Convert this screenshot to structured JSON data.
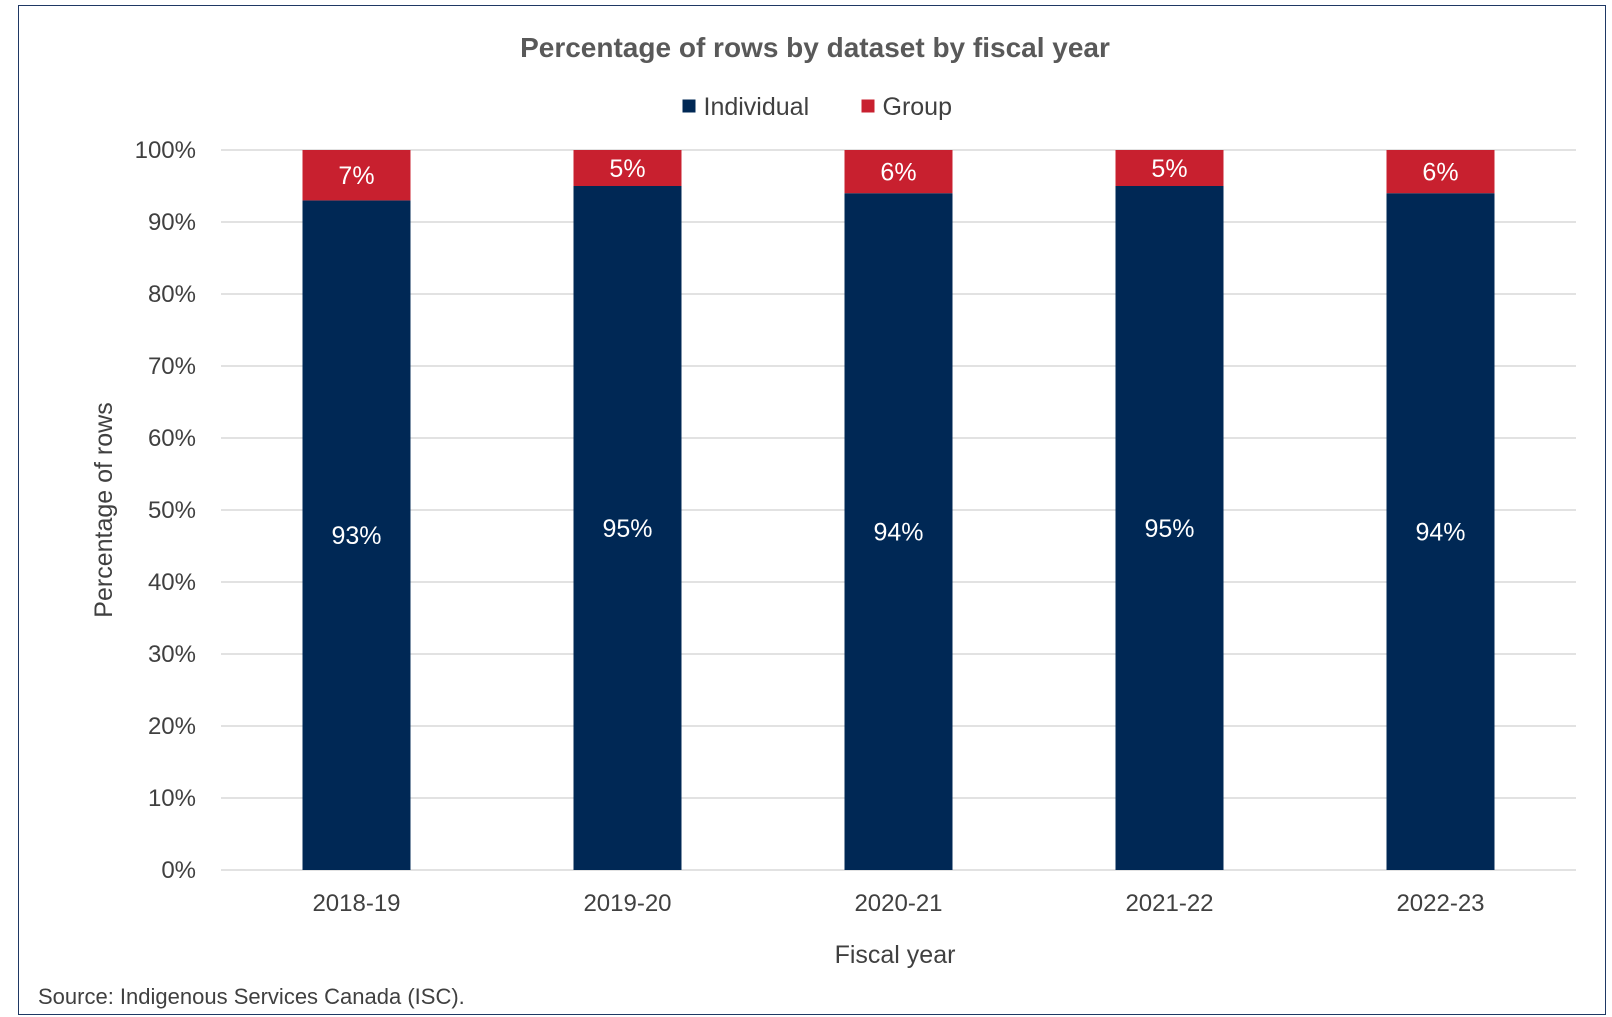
{
  "chart_data": {
    "type": "bar",
    "stacked": true,
    "title": "Percentage of rows by dataset by fiscal year",
    "xlabel": "Fiscal year",
    "ylabel": "Percentage of rows",
    "ylim": [
      0,
      100
    ],
    "yticks": [
      "0%",
      "10%",
      "20%",
      "30%",
      "40%",
      "50%",
      "60%",
      "70%",
      "80%",
      "90%",
      "100%"
    ],
    "categories": [
      "2018-19",
      "2019-20",
      "2020-21",
      "2021-22",
      "2022-23"
    ],
    "series": [
      {
        "name": "Individual",
        "color": "#002855",
        "values": [
          93,
          95,
          94,
          95,
          94
        ],
        "labels": [
          "93%",
          "95%",
          "94%",
          "95%",
          "94%"
        ]
      },
      {
        "name": "Group",
        "color": "#c8202f",
        "values": [
          7,
          5,
          6,
          5,
          6
        ],
        "labels": [
          "7%",
          "5%",
          "6%",
          "5%",
          "6%"
        ]
      }
    ],
    "grid": true,
    "legend": "top-center"
  },
  "source": "Source: Indigenous Services Canada (ISC)."
}
